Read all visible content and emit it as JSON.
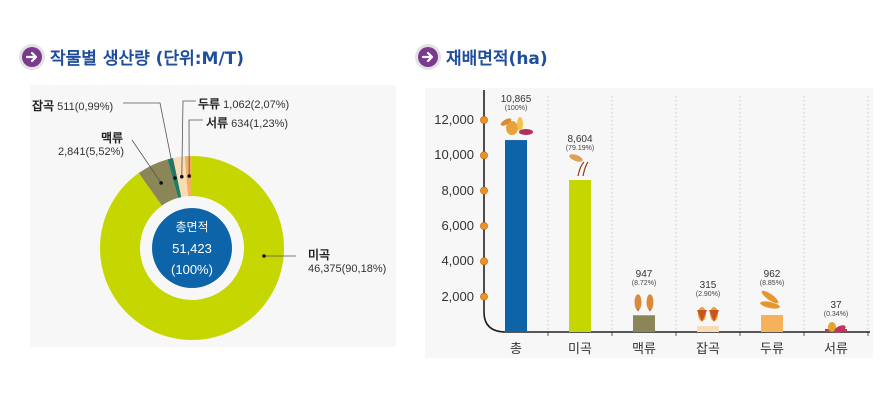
{
  "titles": {
    "production": "작물별 생산량 (단위:M/T)",
    "area": "재배면적(ha)"
  },
  "colors": {
    "title": "#1f4f9c",
    "arrow": "#7a3b8f",
    "total": "#0e64a8",
    "rice": "#c5d600",
    "barley": "#8a8658",
    "misc_grain_donut": "#1e7d66",
    "misc_grain_bar": "#f6ddb5",
    "legume_donut": "#f8dcb4",
    "legume_bar": "#f5b25b",
    "tuber": "#f5ae5c",
    "axis_marker": "#f0901e"
  },
  "chart_data": [
    {
      "type": "pie",
      "title": "작물별 생산량 (단위:M/T)",
      "center_label": "총면적",
      "center_value": "51,423",
      "center_percent": "(100%)",
      "slices": [
        {
          "name": "미곡",
          "value": 46375,
          "value_label": "46,375(90,18%)",
          "percent": 90.18
        },
        {
          "name": "맥류",
          "value": 2841,
          "value_label": "2,841(5,52%)",
          "percent": 5.52
        },
        {
          "name": "잡곡",
          "value": 511,
          "value_label": "511(0,99%)",
          "percent": 0.99
        },
        {
          "name": "두류",
          "value": 1062,
          "value_label": "1,062(2,07%)",
          "percent": 2.07
        },
        {
          "name": "서류",
          "value": 634,
          "value_label": "634(1,23%)",
          "percent": 1.23
        }
      ]
    },
    {
      "type": "bar",
      "title": "재배면적(ha)",
      "categories": [
        "총",
        "미곡",
        "맥류",
        "잡곡",
        "두류",
        "서류"
      ],
      "values": [
        10865,
        8604,
        947,
        315,
        962,
        37
      ],
      "value_labels": [
        "10,865",
        "8,604",
        "947",
        "315",
        "962",
        "37"
      ],
      "percent_labels": [
        "(100%)",
        "(79.19%)",
        "(8.72%)",
        "(2.90%)",
        "(8.85%)",
        "(0.34%)"
      ],
      "yticks": [
        "2,000",
        "4,000",
        "6,000",
        "8,000",
        "10,000",
        "12,000"
      ],
      "ytick_values": [
        2000,
        4000,
        6000,
        8000,
        10000,
        12000
      ],
      "ylim": [
        0,
        12000
      ],
      "grid": "dotted-vertical"
    }
  ]
}
